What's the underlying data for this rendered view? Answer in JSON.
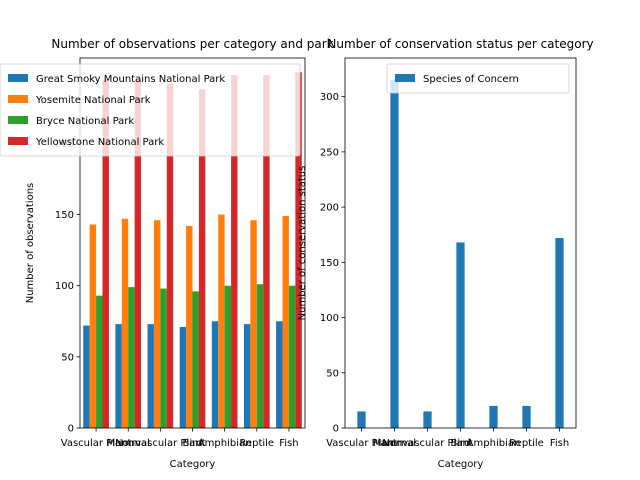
{
  "charts": [
    {
      "id": "left",
      "type": "bar",
      "title": "Number of observations per category and park",
      "xlabel": "Category",
      "ylabel": "Number of observations",
      "ylim": [
        0,
        260
      ],
      "yticks": [
        0,
        50,
        100,
        150,
        200
      ],
      "categories": [
        "Vascular Plant",
        "Mammal",
        "Nonvascular Plant",
        "Bird",
        "Amphibian",
        "Reptile",
        "Fish"
      ],
      "series": [
        {
          "name": "Great Smoky Mountains National Park",
          "color": "#1f77b4",
          "values": [
            72,
            73,
            73,
            71,
            75,
            73,
            75
          ]
        },
        {
          "name": "Yosemite National Park",
          "color": "#ff7f0e",
          "values": [
            143,
            147,
            146,
            142,
            150,
            146,
            149
          ]
        },
        {
          "name": "Bryce National Park",
          "color": "#2ca02c",
          "values": [
            93,
            99,
            98,
            96,
            100,
            101,
            100
          ]
        },
        {
          "name": "Yellowstone National Park",
          "color": "#d62728",
          "values": [
            245,
            245,
            242,
            238,
            248,
            248,
            250
          ]
        }
      ],
      "legend_position": "upper-left"
    },
    {
      "id": "right",
      "type": "bar",
      "title": "Number of conservation status per category",
      "xlabel": "Category",
      "ylabel": "Number of conservation status",
      "ylim": [
        0,
        335
      ],
      "yticks": [
        0,
        50,
        100,
        150,
        200,
        250,
        300
      ],
      "categories": [
        "Vascular Plant",
        "Mammal",
        "Nonvascular Plant",
        "Bird",
        "Amphibian",
        "Reptile",
        "Fish"
      ],
      "series": [
        {
          "name": "Species of Concern",
          "color": "#1f77b4",
          "values": [
            15,
            315,
            15,
            168,
            20,
            20,
            172
          ]
        }
      ],
      "legend_position": "upper-right"
    }
  ]
}
